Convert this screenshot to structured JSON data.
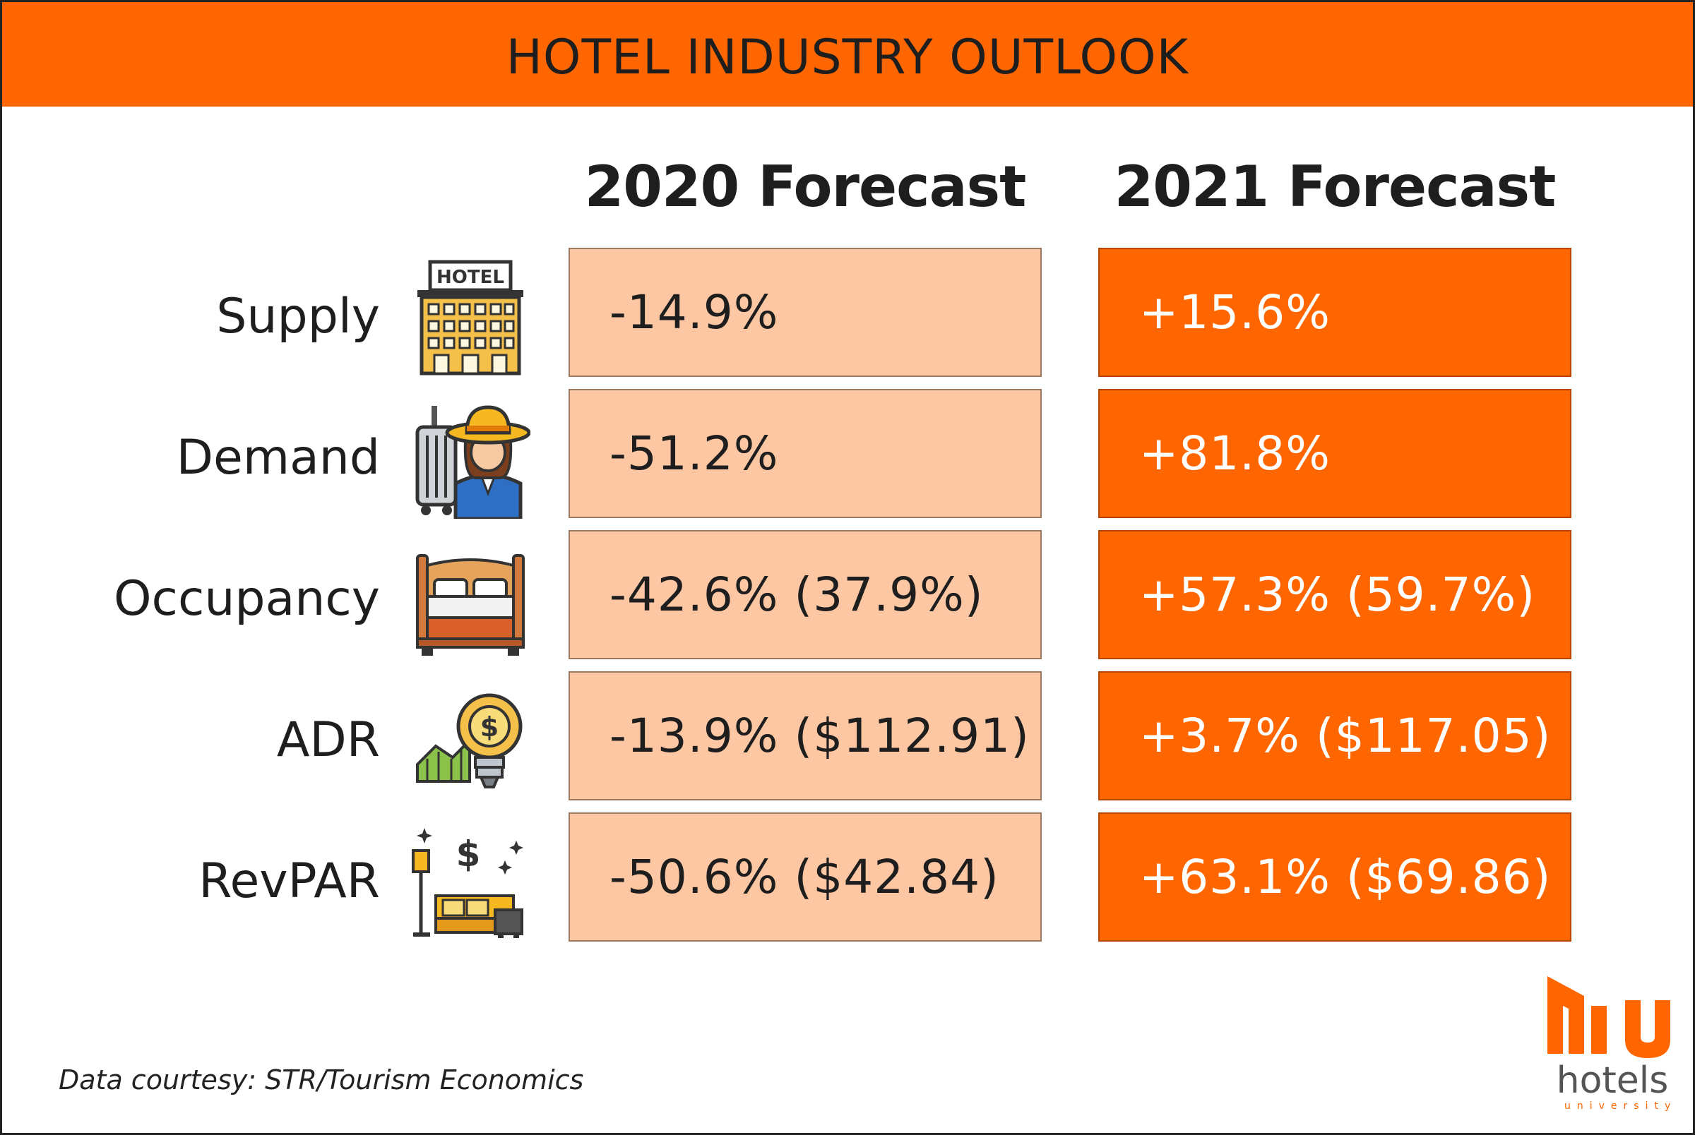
{
  "title": "HOTEL INDUSTRY OUTLOOK",
  "columns": [
    "2020 Forecast",
    "2021 Forecast"
  ],
  "rows": [
    {
      "label": "Supply",
      "icon": "hotel-building-icon",
      "forecast_2020": "-14.9%",
      "forecast_2021": "+15.6%"
    },
    {
      "label": "Demand",
      "icon": "traveler-with-suitcase-icon",
      "forecast_2020": "-51.2%",
      "forecast_2021": "+81.8%"
    },
    {
      "label": "Occupancy",
      "icon": "bed-icon",
      "forecast_2020": "-42.6% (37.9%)",
      "forecast_2021": "+57.3% (59.7%)"
    },
    {
      "label": "ADR",
      "icon": "lightbulb-dollar-icon",
      "forecast_2020": "-13.9% ($112.91)",
      "forecast_2021": "+3.7% ($117.05)"
    },
    {
      "label": "RevPAR",
      "icon": "hotel-room-dollar-icon",
      "forecast_2020": "-50.6% ($42.84)",
      "forecast_2021": "+63.1% ($69.86)"
    }
  ],
  "footer": {
    "credit": "Data courtesy: STR/Tourism Economics"
  },
  "logo": {
    "mark": "hu",
    "word": "hotels",
    "sub": "university"
  },
  "colors": {
    "accent": "#ff6600",
    "light_cell": "#fec7a4",
    "text": "#1e1e1e"
  }
}
